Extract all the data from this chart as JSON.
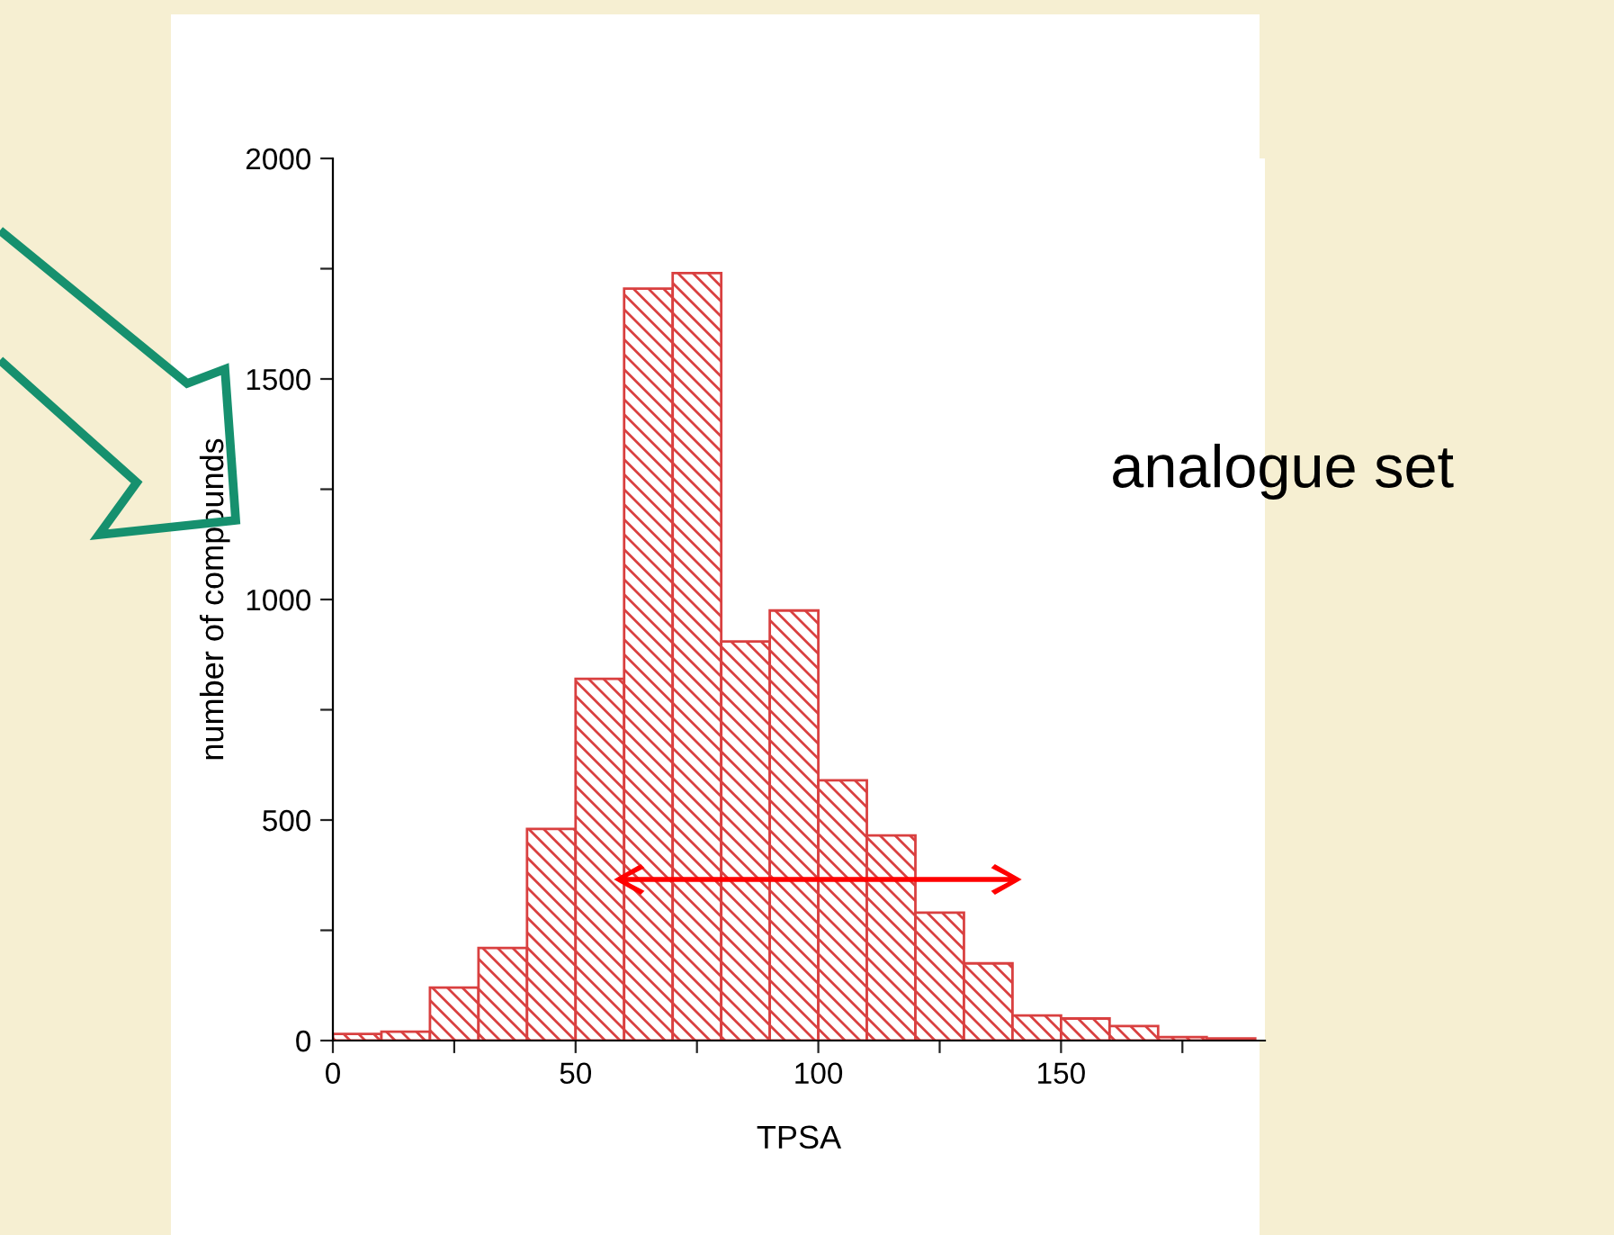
{
  "chart_data": {
    "type": "histogram",
    "xlabel": "TPSA",
    "ylabel": "number of compounds",
    "bins": [
      0,
      10,
      20,
      30,
      40,
      50,
      60,
      70,
      80,
      90,
      100,
      110,
      120,
      130,
      140,
      150,
      160,
      170,
      180,
      190
    ],
    "values": [
      15,
      20,
      120,
      210,
      480,
      820,
      1705,
      1740,
      905,
      975,
      590,
      465,
      290,
      175,
      57,
      50,
      33,
      8,
      5
    ],
    "color": "#d94040",
    "xlim": [
      0,
      192
    ],
    "xticks": [
      0,
      {
        "value": 25,
        "label": null
      },
      50,
      {
        "value": 75,
        "label": null
      },
      100,
      {
        "value": 125,
        "label": null
      },
      150,
      {
        "value": 175,
        "label": null
      }
    ],
    "ylim": [
      0,
      2000
    ],
    "yticks": [
      0,
      {
        "value": 250,
        "label": null
      },
      500,
      {
        "value": 750,
        "label": null
      },
      1000,
      {
        "value": 1250,
        "label": null
      },
      1500,
      {
        "value": 1750,
        "label": null
      },
      2000
    ],
    "annotations": [
      "analogue set"
    ],
    "grid": false
  }
}
